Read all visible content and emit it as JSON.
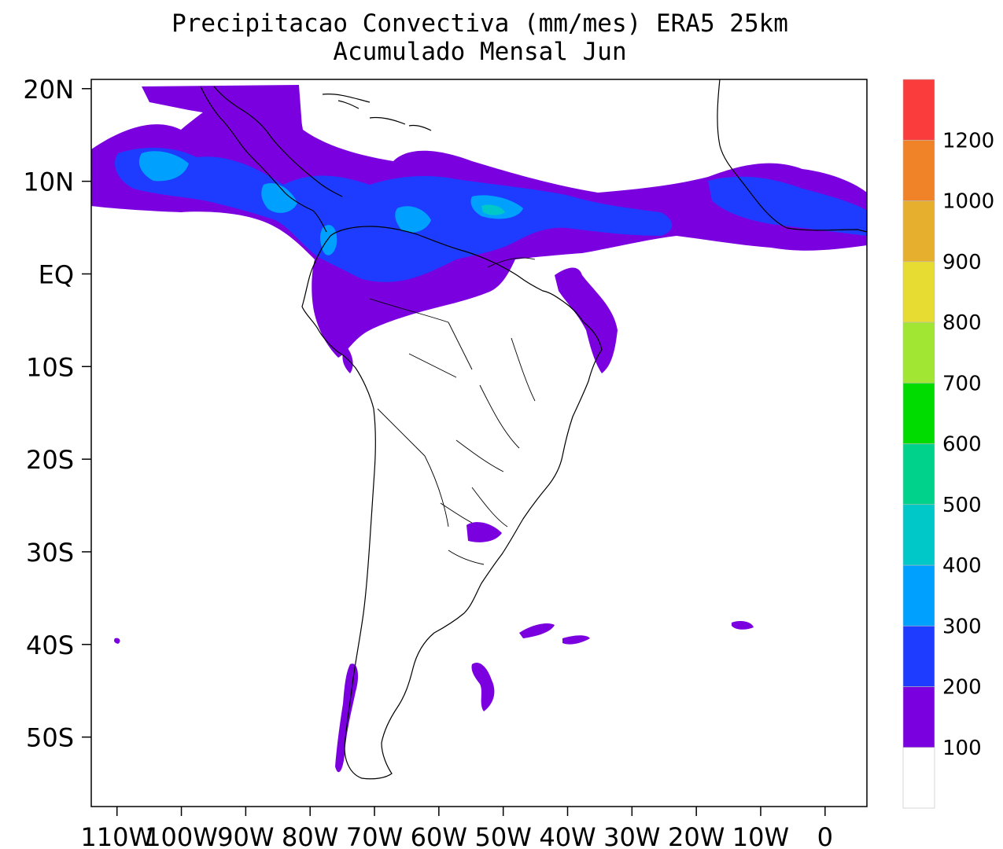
{
  "title": {
    "line1": "Precipitacao Convectiva (mm/mes) ERA5  25km",
    "line2": "Acumulado Mensal Jun"
  },
  "map": {
    "lat_labels": [
      "20N",
      "10N",
      "EQ",
      "10S",
      "20S",
      "30S",
      "40S",
      "50S"
    ],
    "lat_values": [
      20,
      10,
      0,
      -10,
      -20,
      -30,
      -40,
      -50
    ],
    "lon_labels": [
      "110W",
      "100W",
      "90W",
      "80W",
      "70W",
      "60W",
      "50W",
      "40W",
      "30W",
      "20W",
      "10W",
      "0"
    ],
    "lon_values": [
      -110,
      -100,
      -90,
      -80,
      -70,
      -60,
      -50,
      -40,
      -30,
      -20,
      -10,
      0
    ],
    "lon_range": [
      -114,
      6.5
    ],
    "lat_range": [
      -57.5,
      21
    ]
  },
  "colorbar": {
    "labels": [
      "100",
      "200",
      "300",
      "400",
      "500",
      "600",
      "700",
      "800",
      "900",
      "1000",
      "1200"
    ],
    "colors": [
      "#ffffff",
      "#7b00e0",
      "#1e3cff",
      "#00a0ff",
      "#00c8c8",
      "#00d28c",
      "#00dc00",
      "#a0e632",
      "#e6dc32",
      "#e6af2d",
      "#f08228",
      "#fa3c3c"
    ]
  },
  "colors": {
    "land_outline": "#000000"
  }
}
